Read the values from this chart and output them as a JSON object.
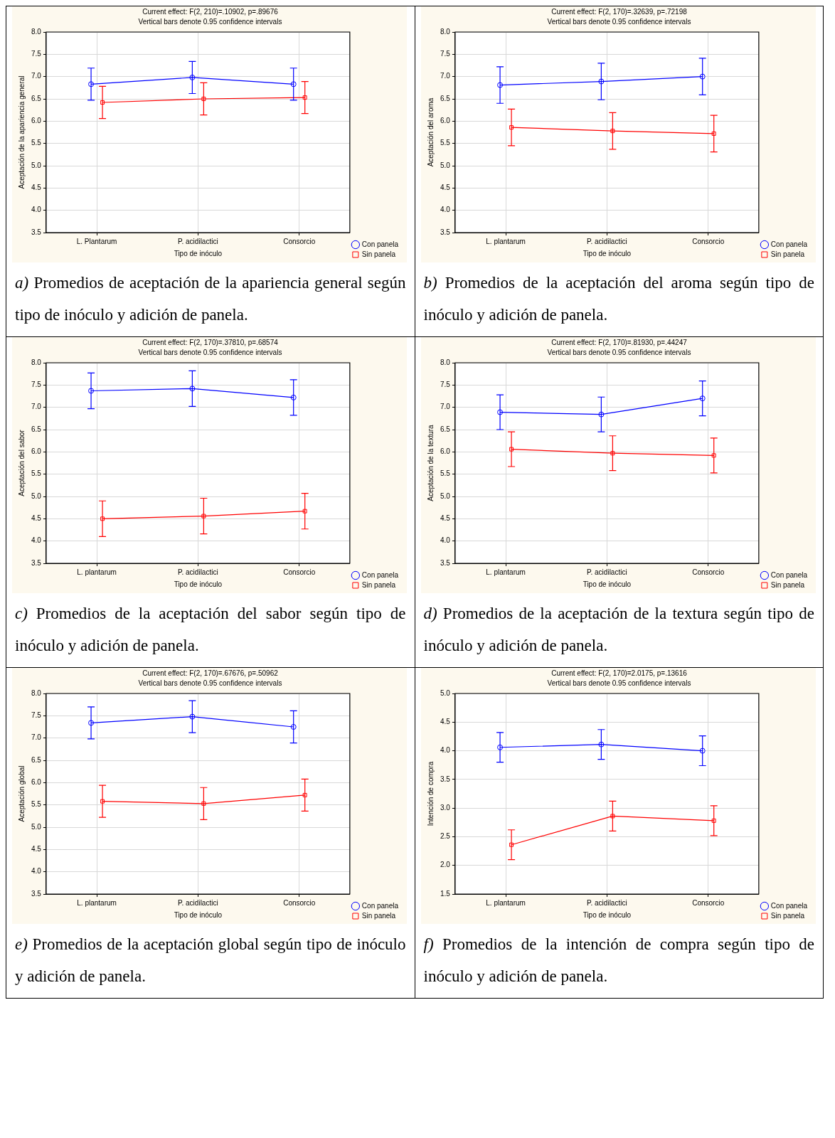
{
  "chart_data": [
    {
      "type": "line",
      "title": "Current effect: F(2, 210)=.10902, p=.89676",
      "subtitle": "Vertical bars denote 0.95 confidence intervals",
      "xlabel": "Tipo de inóculo",
      "ylabel": "Aceptación de la apariencia general",
      "categories": [
        "L. Plantarum",
        "P. acidilactici",
        "Consorcio"
      ],
      "ylim": [
        3.5,
        8
      ],
      "yticks": [
        {
          "value": 3.5,
          "label": "3.5"
        },
        {
          "value": 4,
          "label": "4.0"
        },
        {
          "value": 4.5,
          "label": "4.5"
        },
        {
          "value": 5,
          "label": "5.0"
        },
        {
          "value": 5.5,
          "label": "5.5"
        },
        {
          "value": 6,
          "label": "6.0"
        },
        {
          "value": 6.5,
          "label": "6.5"
        },
        {
          "value": 7,
          "label": "7.0"
        },
        {
          "value": 7.5,
          "label": "7.5"
        },
        {
          "value": 8,
          "label": "8.0"
        }
      ],
      "grid": true,
      "legend": "bottom right",
      "line_style": "solid",
      "series": [
        {
          "name": "Con panela",
          "color": "#0000ff",
          "marker": "circle",
          "values": [
            6.83,
            6.98,
            6.83
          ],
          "errors": [
            0.36,
            0.36,
            0.36
          ]
        },
        {
          "name": "Sin panela",
          "color": "#ff0000",
          "marker": "square",
          "values": [
            6.42,
            6.5,
            6.53
          ],
          "errors": [
            0.36,
            0.36,
            0.36
          ]
        }
      ],
      "annotations": [
        "a) Promedios de aceptación de la apariencia general según tipo de inóculo y adición de panela."
      ]
    },
    {
      "type": "line",
      "title": "Current effect: F(2, 170)=.32639, p=.72198",
      "subtitle": "Vertical bars denote 0.95 confidence intervals",
      "xlabel": "Tipo de inóculo",
      "ylabel": "Aceptación del aroma",
      "categories": [
        "L. plantarum",
        "P. acidilactici",
        "Consorcio"
      ],
      "ylim": [
        3.5,
        8
      ],
      "yticks": [
        {
          "value": 3.5,
          "label": "3.5"
        },
        {
          "value": 4,
          "label": "4.0"
        },
        {
          "value": 4.5,
          "label": "4.5"
        },
        {
          "value": 5,
          "label": "5.0"
        },
        {
          "value": 5.5,
          "label": "5.5"
        },
        {
          "value": 6,
          "label": "6.0"
        },
        {
          "value": 6.5,
          "label": "6.5"
        },
        {
          "value": 7,
          "label": "7.0"
        },
        {
          "value": 7.5,
          "label": "7.5"
        },
        {
          "value": 8,
          "label": "8.0"
        }
      ],
      "grid": true,
      "legend": "bottom right",
      "line_style": "solid",
      "series": [
        {
          "name": "Con panela",
          "color": "#0000ff",
          "marker": "circle",
          "values": [
            6.81,
            6.89,
            7.0
          ],
          "errors": [
            0.41,
            0.41,
            0.41
          ]
        },
        {
          "name": "Sin panela",
          "color": "#ff0000",
          "marker": "square",
          "values": [
            5.86,
            5.78,
            5.72
          ],
          "errors": [
            0.41,
            0.41,
            0.41
          ]
        }
      ],
      "annotations": [
        "b) Promedios de la aceptación del aroma según tipo de inóculo y adición de panela."
      ]
    },
    {
      "type": "line",
      "title": "Current effect: F(2, 170)=.37810, p=.68574",
      "subtitle": "Vertical bars denote 0.95 confidence intervals",
      "xlabel": "Tipo de inóculo",
      "ylabel": "Aceptación del sabor",
      "categories": [
        "L. plantarum",
        "P. acidilactici",
        "Consorcio"
      ],
      "ylim": [
        3.5,
        8
      ],
      "yticks": [
        {
          "value": 3.5,
          "label": "3.5"
        },
        {
          "value": 4,
          "label": "4.0"
        },
        {
          "value": 4.5,
          "label": "4.5"
        },
        {
          "value": 5,
          "label": "5.0"
        },
        {
          "value": 5.5,
          "label": "5.5"
        },
        {
          "value": 6,
          "label": "6.0"
        },
        {
          "value": 6.5,
          "label": "6.5"
        },
        {
          "value": 7,
          "label": "7.0"
        },
        {
          "value": 7.5,
          "label": "7.5"
        },
        {
          "value": 8,
          "label": "8.0"
        }
      ],
      "grid": true,
      "legend": "bottom right",
      "line_style": "solid",
      "series": [
        {
          "name": "Con panela",
          "color": "#0000ff",
          "marker": "circle",
          "values": [
            7.37,
            7.42,
            7.22
          ],
          "errors": [
            0.4,
            0.4,
            0.4
          ]
        },
        {
          "name": "Sin panela",
          "color": "#ff0000",
          "marker": "square",
          "values": [
            4.5,
            4.56,
            4.67
          ],
          "errors": [
            0.4,
            0.4,
            0.4
          ]
        }
      ],
      "annotations": [
        "c) Promedios de la aceptación del sabor según tipo de inóculo y adición de panela."
      ]
    },
    {
      "type": "line",
      "title": "Current effect: F(2, 170)=.81930, p=.44247",
      "subtitle": "Vertical bars denote 0.95 confidence intervals",
      "xlabel": "Tipo de inóculo",
      "ylabel": "Aceptación de la textura",
      "categories": [
        "L. plantarum",
        "P. acidilactici",
        "Consorcio"
      ],
      "ylim": [
        3.5,
        8
      ],
      "yticks": [
        {
          "value": 3.5,
          "label": "3.5"
        },
        {
          "value": 4,
          "label": "4.0"
        },
        {
          "value": 4.5,
          "label": "4.5"
        },
        {
          "value": 5,
          "label": "5.0"
        },
        {
          "value": 5.5,
          "label": "5.5"
        },
        {
          "value": 6,
          "label": "6.0"
        },
        {
          "value": 6.5,
          "label": "6.5"
        },
        {
          "value": 7,
          "label": "7.0"
        },
        {
          "value": 7.5,
          "label": "7.5"
        },
        {
          "value": 8,
          "label": "8.0"
        }
      ],
      "grid": true,
      "legend": "bottom right",
      "line_style": "solid",
      "series": [
        {
          "name": "Con panela",
          "color": "#0000ff",
          "marker": "circle",
          "values": [
            6.89,
            6.84,
            7.2
          ],
          "errors": [
            0.39,
            0.39,
            0.39
          ]
        },
        {
          "name": "Sin panela",
          "color": "#ff0000",
          "marker": "square",
          "values": [
            6.06,
            5.97,
            5.92
          ],
          "errors": [
            0.39,
            0.39,
            0.39
          ]
        }
      ],
      "annotations": [
        "d) Promedios de la aceptación de la textura según tipo de inóculo y adición de panela."
      ]
    },
    {
      "type": "line",
      "title": "Current effect: F(2, 170)=.67676, p=.50962",
      "subtitle": "Vertical bars denote 0.95 confidence intervals",
      "xlabel": "Tipo de inóculo",
      "ylabel": "Aceptación global",
      "categories": [
        "L. plantarum",
        "P. acidilactici",
        "Consorcio"
      ],
      "ylim": [
        3.5,
        8
      ],
      "yticks": [
        {
          "value": 3.5,
          "label": "3.5"
        },
        {
          "value": 4,
          "label": "4.0"
        },
        {
          "value": 4.5,
          "label": "4.5"
        },
        {
          "value": 5,
          "label": "5.0"
        },
        {
          "value": 5.5,
          "label": "5.5"
        },
        {
          "value": 6,
          "label": "6.0"
        },
        {
          "value": 6.5,
          "label": "6.5"
        },
        {
          "value": 7,
          "label": "7.0"
        },
        {
          "value": 7.5,
          "label": "7.5"
        },
        {
          "value": 8,
          "label": "8.0"
        }
      ],
      "grid": true,
      "legend": "bottom right",
      "line_style": "solid",
      "series": [
        {
          "name": "Con panela",
          "color": "#0000ff",
          "marker": "circle",
          "values": [
            7.34,
            7.48,
            7.25
          ],
          "errors": [
            0.36,
            0.36,
            0.36
          ]
        },
        {
          "name": "Sin panela",
          "color": "#ff0000",
          "marker": "square",
          "values": [
            5.58,
            5.53,
            5.72
          ],
          "errors": [
            0.36,
            0.36,
            0.36
          ]
        }
      ],
      "annotations": [
        "e) Promedios de la aceptación global según tipo de inóculo y adición de panela."
      ]
    },
    {
      "type": "line",
      "title": "Current effect: F(2, 170)=2.0175, p=.13616",
      "subtitle": "Vertical bars denote 0.95 confidence intervals",
      "xlabel": "Tipo de inóculo",
      "ylabel": "Intención de compra",
      "categories": [
        "L. plantarum",
        "P. acidilactici",
        "Consorcio"
      ],
      "ylim": [
        1.5,
        5
      ],
      "yticks": [
        {
          "value": 1.5,
          "label": "1.5"
        },
        {
          "value": 2,
          "label": "2.0"
        },
        {
          "value": 2.5,
          "label": "2.5"
        },
        {
          "value": 3,
          "label": "3.0"
        },
        {
          "value": 3.5,
          "label": "3.5"
        },
        {
          "value": 4,
          "label": "4.0"
        },
        {
          "value": 4.5,
          "label": "4.5"
        },
        {
          "value": 5,
          "label": "5.0"
        }
      ],
      "grid": true,
      "legend": "bottom right",
      "line_style": "solid",
      "series": [
        {
          "name": "Con panela",
          "color": "#0000ff",
          "marker": "circle",
          "values": [
            4.06,
            4.11,
            4.0
          ],
          "errors": [
            0.26,
            0.26,
            0.26
          ]
        },
        {
          "name": "Sin panela",
          "color": "#ff0000",
          "marker": "square",
          "values": [
            2.36,
            2.86,
            2.78
          ],
          "errors": [
            0.26,
            0.26,
            0.26
          ]
        }
      ],
      "annotations": [
        "f) Promedios de la intención de compra según tipo de inóculo y adición de panela."
      ]
    }
  ]
}
